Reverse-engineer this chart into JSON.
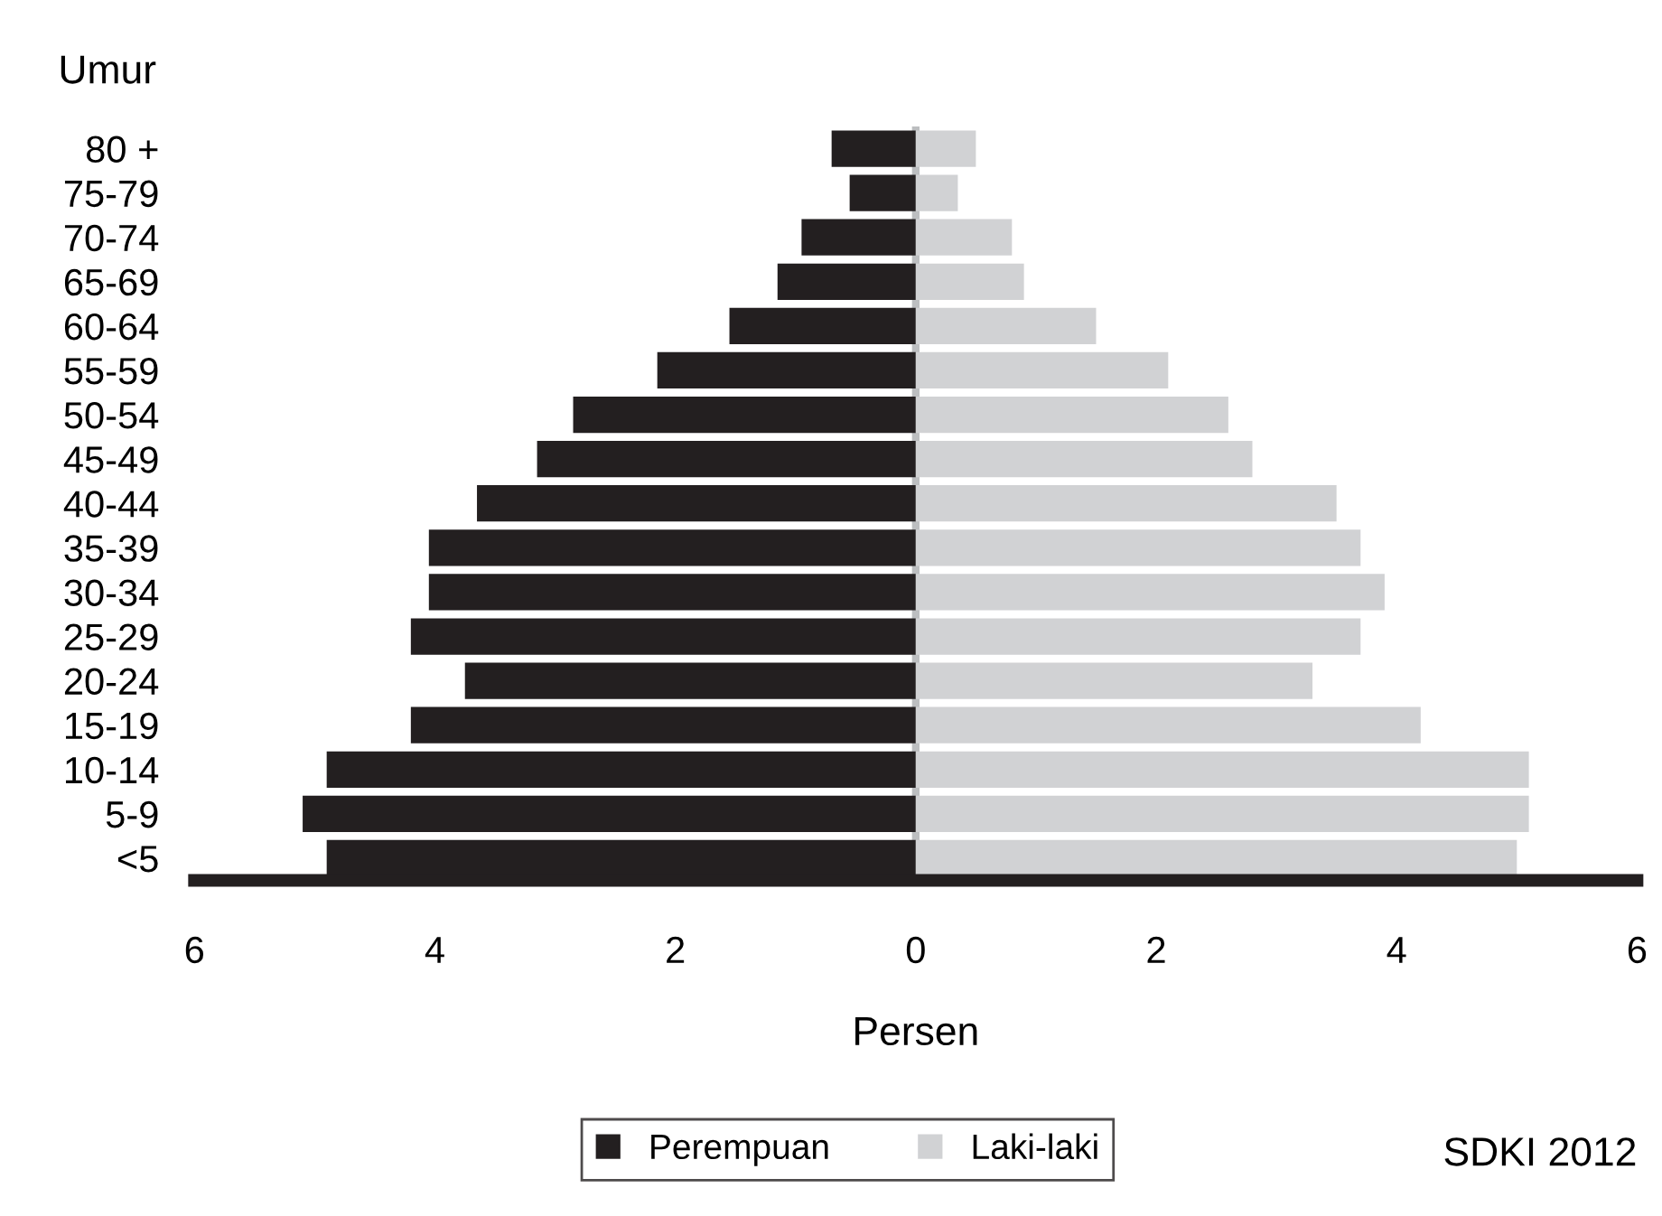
{
  "chart_data": {
    "type": "bar",
    "orientation": "horizontal",
    "ylabel": "Umur",
    "xlabel": "Persen",
    "categories": [
      "80 +",
      "75-79",
      "70-74",
      "65-69",
      "60-64",
      "55-59",
      "50-54",
      "45-49",
      "40-44",
      "35-39",
      "30-34",
      "25-29",
      "20-24",
      "15-19",
      "10-14",
      "5-9",
      "<5"
    ],
    "series": [
      {
        "name": "Perempuan",
        "color": "#231f20",
        "values": [
          -0.7,
          -0.55,
          -0.95,
          -1.15,
          -1.55,
          -2.15,
          -2.85,
          -3.15,
          -3.65,
          -4.05,
          -4.05,
          -4.2,
          -3.75,
          -4.2,
          -4.9,
          -5.1,
          -4.9
        ]
      },
      {
        "name": "Laki-laki",
        "color": "#d1d2d4",
        "values": [
          0.5,
          0.35,
          0.8,
          0.9,
          1.5,
          2.1,
          2.6,
          2.8,
          3.5,
          3.7,
          3.9,
          3.7,
          3.3,
          4.2,
          5.1,
          5.1,
          5.0
        ]
      }
    ],
    "xlim": [
      -6,
      6
    ],
    "xticks": [
      {
        "value": -6,
        "label": "6"
      },
      {
        "value": -4,
        "label": "4"
      },
      {
        "value": -2,
        "label": "2"
      },
      0,
      2,
      4,
      6
    ],
    "stacked": true,
    "legend": "bottom",
    "grid": false,
    "ref_lines": [
      {
        "axis": "x",
        "value": 0,
        "label": null,
        "color": "#bcbec0"
      }
    ],
    "annotations": [
      "SDKI 2012"
    ]
  }
}
